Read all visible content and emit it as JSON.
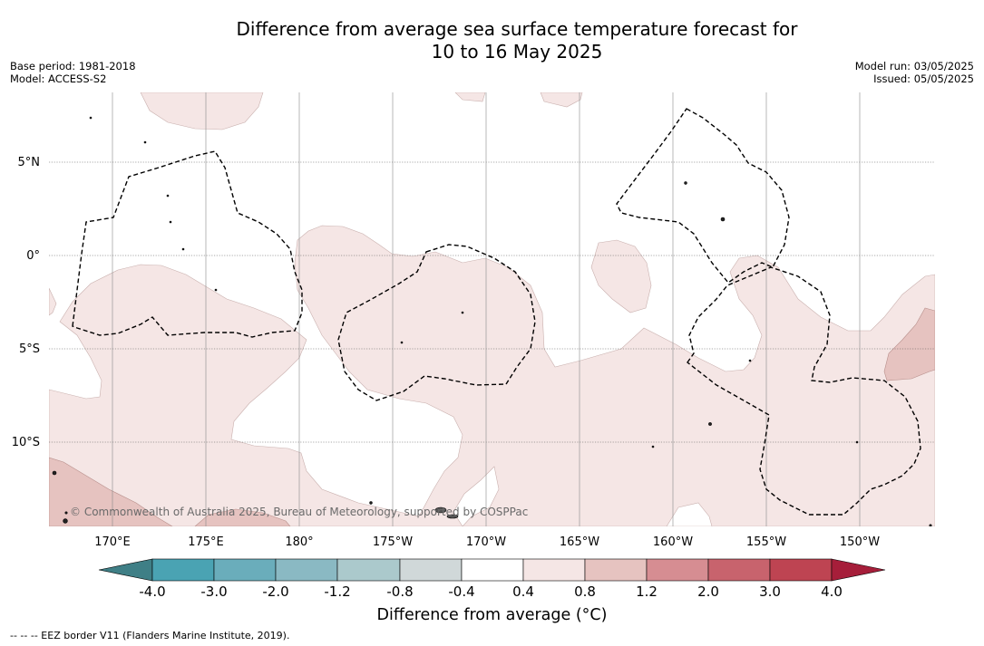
{
  "title_line1": "Difference from average sea surface temperature forecast for",
  "title_line2": "10 to 16 May 2025",
  "meta_left": {
    "base_period": "Base period: 1981-2018",
    "model": "Model: ACCESS-S2"
  },
  "meta_right": {
    "model_run": "Model run: 03/05/2025",
    "issued": "Issued: 05/05/2025"
  },
  "lat_labels": [
    "5°N",
    "0°",
    "5°S",
    "10°S"
  ],
  "lon_labels": [
    "170°E",
    "175°E",
    "180°",
    "175°W",
    "170°W",
    "165°W",
    "160°W",
    "155°W",
    "150°W"
  ],
  "copyright": "© Commonwealth of Australia 2025, Bureau of Meteorology, supported by COSPPac",
  "colorbar": {
    "title": "Difference from average (°C)",
    "tick_labels": [
      "-4.0",
      "-3.0",
      "-2.0",
      "-1.2",
      "-0.8",
      "-0.4",
      "0.4",
      "0.8",
      "1.2",
      "2.0",
      "3.0",
      "4.0"
    ],
    "colors": [
      "#3f7f86",
      "#4aa3b3",
      "#6aadbb",
      "#8ab9c3",
      "#abc9cc",
      "#d0d8d9",
      "#ffffff",
      "#f5e6e5",
      "#e6c3c0",
      "#d68d92",
      "#c8636d",
      "#be4452",
      "#a61e3a"
    ]
  },
  "legend_footer": "--  --  -- EEZ border V11 (Flanders Marine Institute, 2019).",
  "map_colors": {
    "warm_light": "#f5e6e5",
    "warm_medium": "#e6c3c0",
    "grid": "#555555",
    "eez": "#000000"
  }
}
